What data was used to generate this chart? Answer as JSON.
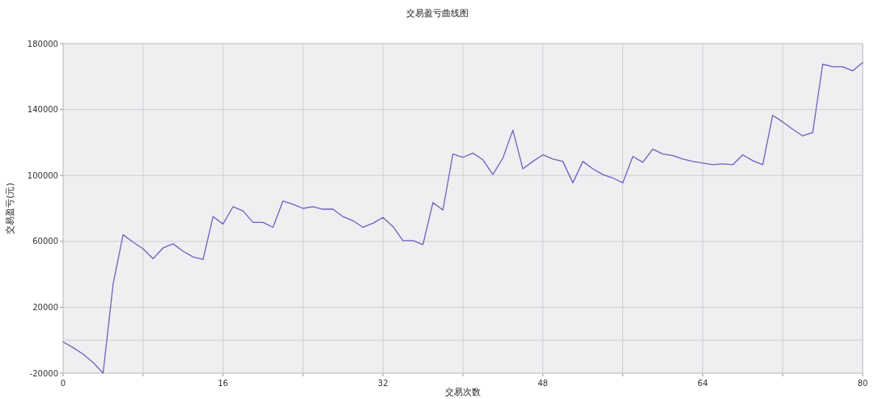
{
  "chart_data": {
    "type": "line",
    "title": "交易盈亏曲线图",
    "xlabel": "交易次数",
    "ylabel": "交易盈亏(元)",
    "x": [
      0,
      1,
      2,
      3,
      4,
      5,
      6,
      7,
      8,
      9,
      10,
      11,
      12,
      13,
      14,
      15,
      16,
      17,
      18,
      19,
      20,
      21,
      22,
      23,
      24,
      25,
      26,
      27,
      28,
      29,
      30,
      31,
      32,
      33,
      34,
      35,
      36,
      37,
      38,
      39,
      40,
      41,
      42,
      43,
      44,
      45,
      46,
      47,
      48,
      49,
      50,
      51,
      52,
      53,
      54,
      55,
      56,
      57,
      58,
      59,
      60,
      61,
      62,
      63,
      64,
      65,
      66,
      67,
      68,
      69,
      70,
      71,
      72,
      73,
      74,
      75,
      76,
      77,
      78,
      79,
      80
    ],
    "values": [
      -1000,
      -4500,
      -8500,
      -13500,
      -20000,
      34000,
      64000,
      59500,
      55500,
      49500,
      56000,
      58500,
      54000,
      50500,
      49000,
      75000,
      70500,
      81000,
      78500,
      71500,
      71500,
      68500,
      84500,
      82500,
      80000,
      81000,
      79500,
      79500,
      75000,
      72500,
      68500,
      71000,
      74500,
      69000,
      60500,
      60500,
      58000,
      83500,
      79000,
      113000,
      111000,
      113500,
      109500,
      100500,
      110500,
      127500,
      104000,
      108500,
      112500,
      110000,
      108500,
      95500,
      108500,
      104000,
      100500,
      98500,
      95500,
      111500,
      108000,
      116000,
      113000,
      112000,
      110000,
      108500,
      107500,
      106500,
      107000,
      106500,
      112500,
      109000,
      106500,
      136500,
      132500,
      128000,
      124000,
      126000,
      167500,
      166000,
      166000,
      163500,
      168500
    ],
    "color": "#6a63c0",
    "line_style": "solid",
    "xlim": [
      0,
      80
    ],
    "ylim": [
      -20000,
      180000
    ],
    "xticks": [
      0,
      {
        "value": 8,
        "label": null
      },
      16,
      {
        "value": 24,
        "label": null
      },
      32,
      {
        "value": 40,
        "label": null
      },
      48,
      {
        "value": 56,
        "label": null
      },
      64,
      {
        "value": 72,
        "label": null
      },
      80
    ],
    "yticks": [
      -20000,
      20000,
      60000,
      100000,
      140000,
      180000
    ],
    "grid": true,
    "ref_lines": [
      {
        "axis": "y",
        "value": 0,
        "label": null,
        "color": "#cfcfd3"
      }
    ]
  }
}
